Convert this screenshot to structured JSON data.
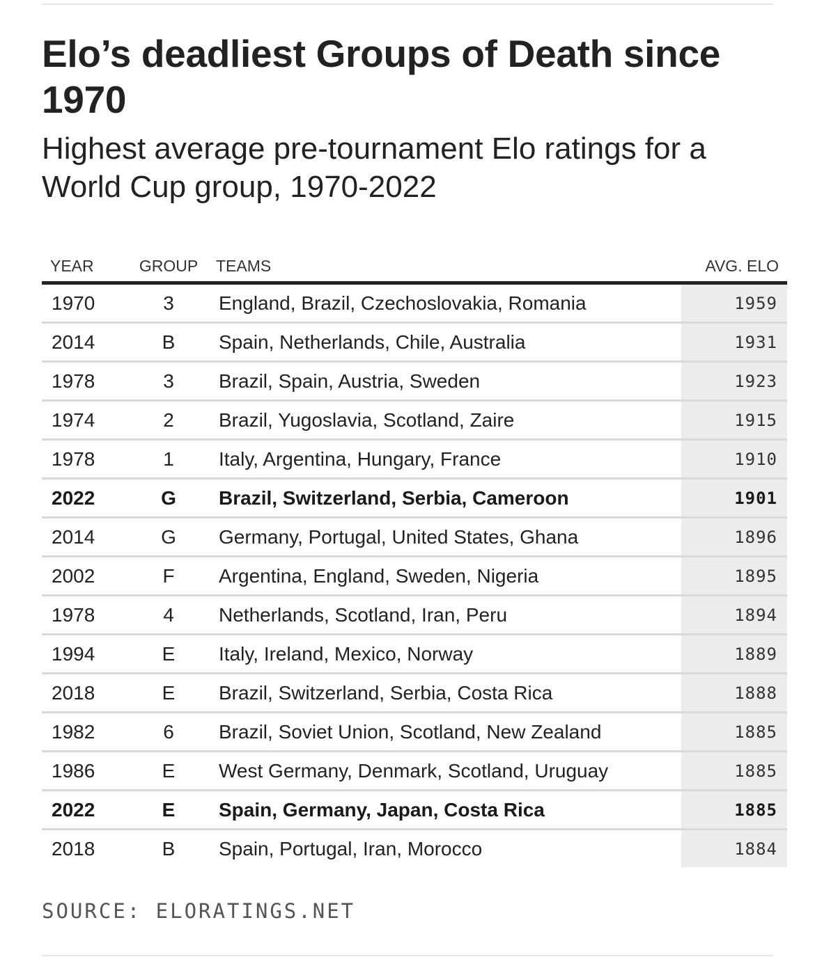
{
  "title": "Elo’s deadliest Groups of Death since 1970",
  "subtitle": "Highest average pre-tournament Elo ratings for a World Cup group, 1970-2022",
  "source": "SOURCE: ELORATINGS.NET",
  "colors": {
    "text": "#222222",
    "elo_column_background": "#ececec",
    "row_divider": "#d9d9d9",
    "header_rule": "#222222"
  },
  "chart_data": {
    "type": "table",
    "columns": [
      "YEAR",
      "GROUP",
      "TEAMS",
      "AVG. ELO"
    ],
    "highlighted_rows": [
      5,
      13
    ],
    "rows": [
      {
        "year": "1970",
        "group": "3",
        "teams": "England, Brazil, Czechoslovakia, Romania",
        "avg_elo": 1959
      },
      {
        "year": "2014",
        "group": "B",
        "teams": "Spain, Netherlands, Chile, Australia",
        "avg_elo": 1931
      },
      {
        "year": "1978",
        "group": "3",
        "teams": "Brazil, Spain, Austria, Sweden",
        "avg_elo": 1923
      },
      {
        "year": "1974",
        "group": "2",
        "teams": "Brazil, Yugoslavia, Scotland, Zaire",
        "avg_elo": 1915
      },
      {
        "year": "1978",
        "group": "1",
        "teams": "Italy, Argentina, Hungary, France",
        "avg_elo": 1910
      },
      {
        "year": "2022",
        "group": "G",
        "teams": "Brazil, Switzerland, Serbia, Cameroon",
        "avg_elo": 1901
      },
      {
        "year": "2014",
        "group": "G",
        "teams": "Germany, Portugal, United States, Ghana",
        "avg_elo": 1896
      },
      {
        "year": "2002",
        "group": "F",
        "teams": "Argentina, England, Sweden, Nigeria",
        "avg_elo": 1895
      },
      {
        "year": "1978",
        "group": "4",
        "teams": "Netherlands, Scotland, Iran, Peru",
        "avg_elo": 1894
      },
      {
        "year": "1994",
        "group": "E",
        "teams": "Italy, Ireland, Mexico, Norway",
        "avg_elo": 1889
      },
      {
        "year": "2018",
        "group": "E",
        "teams": "Brazil, Switzerland, Serbia, Costa Rica",
        "avg_elo": 1888
      },
      {
        "year": "1982",
        "group": "6",
        "teams": "Brazil, Soviet Union, Scotland, New Zealand",
        "avg_elo": 1885
      },
      {
        "year": "1986",
        "group": "E",
        "teams": "West Germany, Denmark, Scotland, Uruguay",
        "avg_elo": 1885
      },
      {
        "year": "2022",
        "group": "E",
        "teams": "Spain, Germany, Japan, Costa Rica",
        "avg_elo": 1885
      },
      {
        "year": "2018",
        "group": "B",
        "teams": "Spain, Portugal, Iran, Morocco",
        "avg_elo": 1884
      }
    ]
  }
}
